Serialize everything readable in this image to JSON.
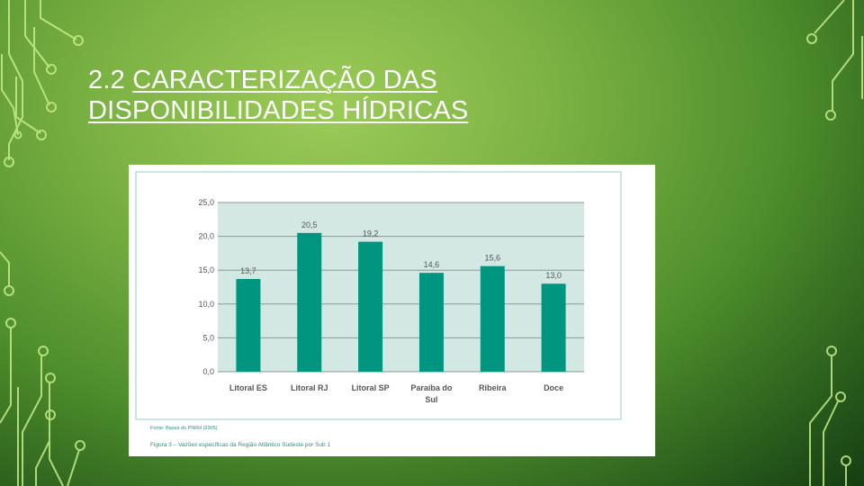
{
  "slide": {
    "title_number": "2.2",
    "title_line1": "CARACTERIZAÇÃO DAS",
    "title_line2": "DISPONIBILIDADES HÍDRICAS"
  },
  "figure": {
    "source": "Fonte: Bases do PNRH (2005)",
    "caption": "Figura 3 – Vazões específicas da Região Atlântico Sudeste por Sub 1"
  },
  "colors": {
    "bar": "#00957f",
    "plot_bg": "#d3e8e3",
    "frame": "#b9ddd6",
    "tick_text": "#555555",
    "caption_text": "#2a8f86",
    "circuit": "#c6ec8a"
  },
  "chart_data": {
    "type": "bar",
    "categories": [
      "Litoral ES",
      "Litoral RJ",
      "Litoral SP",
      "Paraíba do Sul",
      "Ribeira",
      "Doce"
    ],
    "values": [
      13.7,
      20.5,
      19.2,
      14.6,
      15.6,
      13.0
    ],
    "value_labels": [
      "13,7",
      "20,5",
      "19,2",
      "14,6",
      "15,6",
      "13,0"
    ],
    "y_ticks": [
      0,
      5,
      10,
      15,
      20,
      25
    ],
    "y_tick_labels": [
      "0,0",
      "5,0",
      "10,0",
      "15,0",
      "20,0",
      "25,0"
    ],
    "ylim": [
      0,
      25
    ],
    "grid": true,
    "title": "",
    "xlabel": "",
    "ylabel": ""
  }
}
